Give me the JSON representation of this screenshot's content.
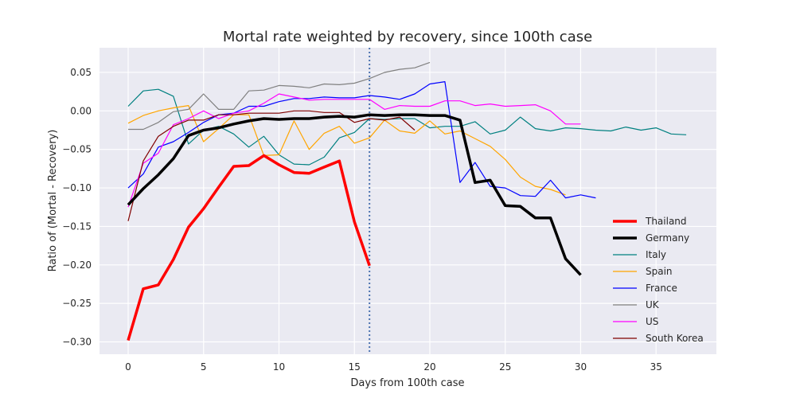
{
  "chart_data": {
    "type": "line",
    "title": "Mortal rate weighted by recovery, since 100th case",
    "xlabel": "Days from 100th case",
    "ylabel": "Ratio of (Mortal - Recovery)",
    "xlim": [
      -1.9,
      39.0
    ],
    "ylim": [
      -0.316,
      0.082
    ],
    "xticks": [
      0,
      5,
      10,
      15,
      20,
      25,
      30,
      35
    ],
    "yticks": [
      -0.3,
      -0.25,
      -0.2,
      -0.15,
      -0.1,
      -0.05,
      0.0,
      0.05
    ],
    "ytick_labels": [
      "−0.30",
      "−0.25",
      "−0.20",
      "−0.15",
      "−0.10",
      "−0.05",
      "0.00",
      "0.05"
    ],
    "grid": true,
    "background": "#eaeaf2",
    "legend_position": "lower-right",
    "vline": {
      "x": 16,
      "color": "#4c72b0",
      "style": "dotted"
    },
    "series": [
      {
        "name": "Thailand",
        "color": "#ff0000",
        "width": 3.5,
        "x": [
          0,
          1,
          2,
          3,
          4,
          5,
          6,
          7,
          8,
          9,
          10,
          11,
          12,
          13,
          14,
          15,
          16
        ],
        "y": [
          -0.298,
          -0.231,
          -0.226,
          -0.193,
          -0.151,
          -0.127,
          -0.099,
          -0.072,
          -0.071,
          -0.058,
          -0.07,
          -0.08,
          -0.081,
          -0.073,
          -0.065,
          -0.144,
          -0.201
        ]
      },
      {
        "name": "Germany",
        "color": "#000000",
        "width": 3.5,
        "x": [
          0,
          1,
          2,
          3,
          4,
          5,
          6,
          7,
          8,
          9,
          10,
          11,
          12,
          13,
          14,
          15,
          16,
          17,
          18,
          19,
          20,
          21,
          22,
          23,
          24,
          25,
          26,
          27,
          28,
          29,
          30
        ],
        "y": [
          -0.122,
          -0.101,
          -0.083,
          -0.062,
          -0.032,
          -0.025,
          -0.022,
          -0.017,
          -0.013,
          -0.01,
          -0.011,
          -0.01,
          -0.01,
          -0.008,
          -0.007,
          -0.008,
          -0.005,
          -0.006,
          -0.005,
          -0.005,
          -0.006,
          -0.006,
          -0.012,
          -0.093,
          -0.09,
          -0.123,
          -0.124,
          -0.139,
          -0.139,
          -0.192,
          -0.213
        ]
      },
      {
        "name": "Italy",
        "color": "#008080",
        "width": 1.2,
        "x": [
          0,
          1,
          2,
          3,
          4,
          5,
          6,
          7,
          8,
          9,
          10,
          11,
          12,
          13,
          14,
          15,
          16,
          17,
          18,
          19,
          20,
          21,
          22,
          23,
          24,
          25,
          26,
          27,
          28,
          29,
          30,
          31,
          32,
          33,
          34,
          35,
          36,
          37
        ],
        "y": [
          0.006,
          0.026,
          0.028,
          0.019,
          -0.043,
          -0.025,
          -0.02,
          -0.03,
          -0.047,
          -0.033,
          -0.057,
          -0.069,
          -0.07,
          -0.06,
          -0.035,
          -0.028,
          -0.01,
          -0.011,
          -0.01,
          -0.01,
          -0.022,
          -0.02,
          -0.02,
          -0.014,
          -0.03,
          -0.025,
          -0.008,
          -0.023,
          -0.026,
          -0.022,
          -0.023,
          -0.025,
          -0.026,
          -0.021,
          -0.025,
          -0.022,
          -0.03,
          -0.031
        ]
      },
      {
        "name": "Spain",
        "color": "#ffa500",
        "width": 1.2,
        "x": [
          0,
          1,
          2,
          3,
          4,
          5,
          6,
          7,
          8,
          9,
          10,
          11,
          12,
          13,
          14,
          15,
          16,
          17,
          18,
          19,
          20,
          21,
          22,
          23,
          24,
          25,
          26,
          27,
          28,
          29
        ],
        "y": [
          -0.016,
          -0.006,
          0.0,
          0.004,
          0.007,
          -0.04,
          -0.023,
          -0.005,
          -0.005,
          -0.058,
          -0.057,
          -0.013,
          -0.05,
          -0.029,
          -0.02,
          -0.042,
          -0.035,
          -0.012,
          -0.026,
          -0.029,
          -0.013,
          -0.03,
          -0.026,
          -0.036,
          -0.046,
          -0.063,
          -0.086,
          -0.098,
          -0.102,
          -0.109
        ]
      },
      {
        "name": "France",
        "color": "#0000ff",
        "width": 1.2,
        "x": [
          0,
          1,
          2,
          3,
          4,
          5,
          6,
          7,
          8,
          9,
          10,
          11,
          12,
          13,
          14,
          15,
          16,
          17,
          18,
          19,
          20,
          21,
          22,
          23,
          24,
          25,
          26,
          27,
          28,
          29,
          30,
          31
        ],
        "y": [
          -0.1,
          -0.082,
          -0.047,
          -0.04,
          -0.028,
          -0.015,
          -0.005,
          -0.003,
          0.006,
          0.006,
          0.012,
          0.016,
          0.016,
          0.018,
          0.017,
          0.017,
          0.02,
          0.018,
          0.015,
          0.022,
          0.035,
          0.038,
          -0.093,
          -0.067,
          -0.098,
          -0.1,
          -0.11,
          -0.111,
          -0.09,
          -0.113,
          -0.109,
          -0.113
        ]
      },
      {
        "name": "UK",
        "color": "#808080",
        "width": 1.2,
        "x": [
          0,
          1,
          2,
          3,
          4,
          5,
          6,
          7,
          8,
          9,
          10,
          11,
          12,
          13,
          14,
          15,
          16,
          17,
          18,
          19,
          20
        ],
        "y": [
          -0.024,
          -0.024,
          -0.015,
          -0.001,
          0.002,
          0.022,
          0.002,
          0.002,
          0.026,
          0.027,
          0.033,
          0.032,
          0.03,
          0.035,
          0.034,
          0.036,
          0.042,
          0.05,
          0.054,
          0.056,
          0.063
        ]
      },
      {
        "name": "US",
        "color": "#ff00ff",
        "width": 1.2,
        "x": [
          0,
          1,
          2,
          3,
          4,
          5,
          6,
          7,
          8,
          9,
          10,
          11,
          12,
          13,
          14,
          15,
          16,
          17,
          18,
          19,
          20,
          21,
          22,
          23,
          24,
          25,
          26,
          27,
          28,
          29,
          30
        ],
        "y": [
          -0.125,
          -0.068,
          -0.055,
          -0.018,
          -0.01,
          0.0,
          -0.01,
          -0.003,
          0.0,
          0.01,
          0.022,
          0.018,
          0.014,
          0.015,
          0.015,
          0.015,
          0.015,
          0.002,
          0.007,
          0.006,
          0.006,
          0.013,
          0.013,
          0.007,
          0.009,
          0.006,
          0.007,
          0.008,
          0.0,
          -0.017,
          -0.017
        ]
      },
      {
        "name": "South Korea",
        "color": "#800000",
        "width": 1.2,
        "x": [
          0,
          1,
          2,
          3,
          4,
          5,
          6,
          7,
          8,
          9,
          10,
          11,
          12,
          13,
          14,
          15,
          16,
          17,
          18,
          19
        ],
        "y": [
          -0.143,
          -0.065,
          -0.033,
          -0.02,
          -0.012,
          -0.012,
          -0.005,
          -0.005,
          -0.003,
          -0.003,
          -0.003,
          0.0,
          0.0,
          -0.002,
          -0.002,
          -0.015,
          -0.01,
          -0.012,
          -0.008,
          -0.025
        ]
      }
    ]
  }
}
